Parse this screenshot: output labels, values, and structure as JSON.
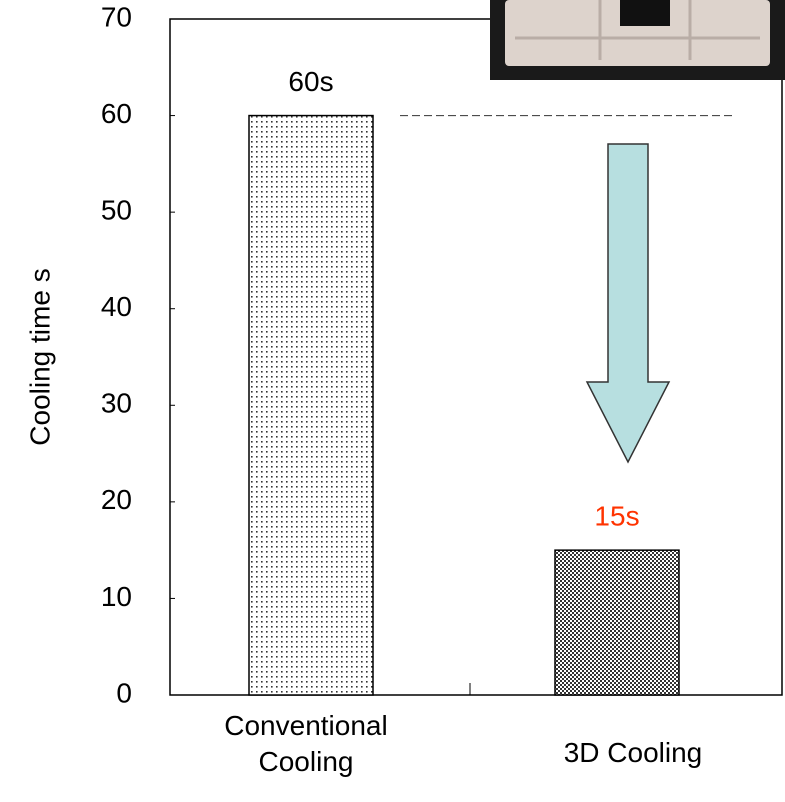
{
  "chart_data": {
    "type": "bar",
    "y_label": "Cooling time s",
    "categories": [
      "Conventional Cooling",
      "3D Cooling"
    ],
    "values": [
      60,
      15
    ],
    "value_labels": [
      "60s",
      "15s"
    ],
    "value_label_colors": [
      "#000000",
      "#ff3300"
    ],
    "ylim": [
      0,
      70
    ],
    "yticks": [
      0,
      10,
      20,
      30,
      40,
      50,
      60,
      70
    ]
  }
}
